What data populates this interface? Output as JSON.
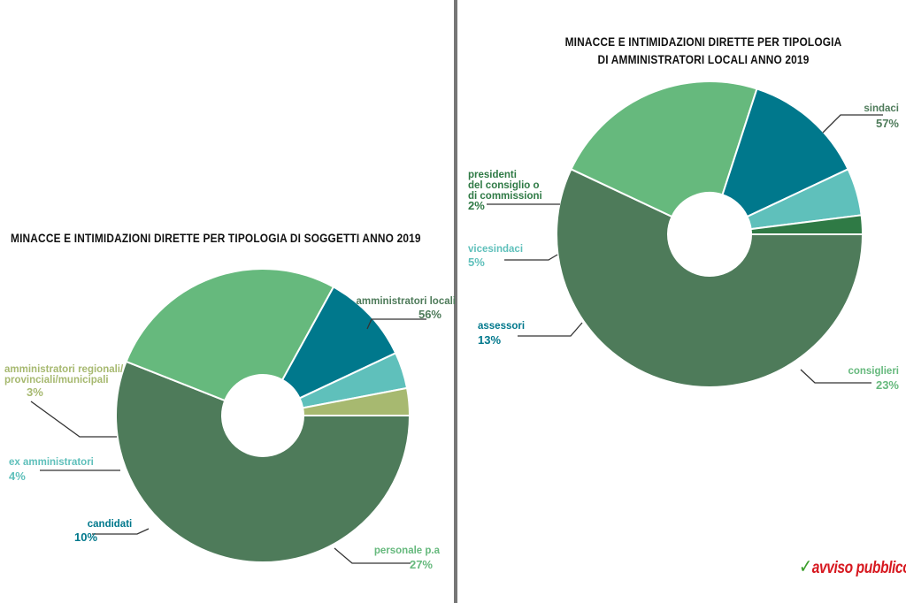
{
  "colors": {
    "dark_green": "#4e7b5a",
    "light_green": "#66b97d",
    "teal": "#00788c",
    "cyan": "#5fc0bb",
    "olive": "#a7b970",
    "forest": "#2f7a45",
    "logo_red": "#d71920",
    "logo_green": "#3a9d2a"
  },
  "logo": {
    "text": "avviso pubblico",
    "mark_icon": "check-mark-icon"
  },
  "chart_data": [
    {
      "type": "pie",
      "donut": true,
      "title": "MINACCE E INTIMIDAZIONI DIRETTE PER TIPOLOGIA DI SOGGETTI ANNO 2019",
      "slices": [
        {
          "name": "amministratori locali",
          "value": 56,
          "label": "56%",
          "color": "#4e7b5a"
        },
        {
          "name": "personale p.a",
          "value": 27,
          "label": "27%",
          "color": "#66b97d"
        },
        {
          "name": "candidati",
          "value": 10,
          "label": "10%",
          "color": "#00788c"
        },
        {
          "name": "ex amministratori",
          "value": 4,
          "label": "4%",
          "color": "#5fc0bb"
        },
        {
          "name_lines": [
            "amministratori regionali/",
            "provinciali/municipali"
          ],
          "value": 3,
          "label": "3%",
          "color": "#a7b970"
        }
      ]
    },
    {
      "type": "pie",
      "donut": true,
      "title_lines": [
        "MINACCE E INTIMIDAZIONI DIRETTE PER TIPOLOGIA",
        "DI AMMINISTRATORI LOCALI ANNO 2019"
      ],
      "slices": [
        {
          "name": "sindaci",
          "value": 57,
          "label": "57%",
          "color": "#4e7b5a"
        },
        {
          "name": "consiglieri",
          "value": 23,
          "label": "23%",
          "color": "#66b97d"
        },
        {
          "name": "assessori",
          "value": 13,
          "label": "13%",
          "color": "#00788c"
        },
        {
          "name": "vicesindaci",
          "value": 5,
          "label": "5%",
          "color": "#5fc0bb"
        },
        {
          "name_lines": [
            "presidenti",
            "del consiglio o",
            "di commissioni"
          ],
          "value": 2,
          "label": "2%",
          "color": "#2f7a45"
        }
      ]
    }
  ]
}
